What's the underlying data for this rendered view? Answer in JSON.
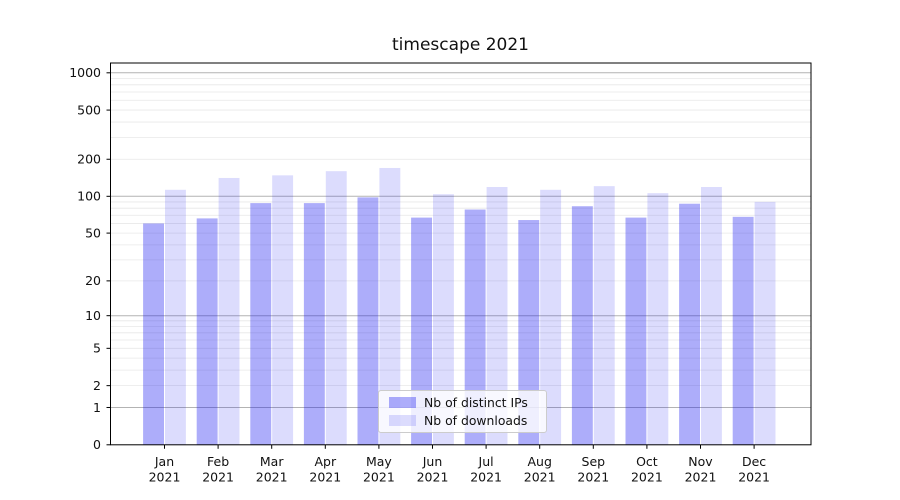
{
  "chart_data": {
    "type": "bar",
    "title": "timescape 2021",
    "categories": [
      "Jan 2021",
      "Feb 2021",
      "Mar 2021",
      "Apr 2021",
      "May 2021",
      "Jun 2021",
      "Jul 2021",
      "Aug 2021",
      "Sep 2021",
      "Oct 2021",
      "Nov 2021",
      "Dec 2021"
    ],
    "series": [
      {
        "name": "Nb of distinct IPs",
        "base_color": "#1414f0",
        "alpha": 0.35,
        "apparent_color": "#a9a9f6",
        "values": [
          60,
          66,
          88,
          88,
          98,
          67,
          78,
          64,
          83,
          67,
          87,
          68
        ]
      },
      {
        "name": "Nb of downloads",
        "base_color": "#1414f0",
        "alpha": 0.15,
        "apparent_color": "#d9d9fa",
        "values": [
          113,
          141,
          148,
          160,
          170,
          104,
          119,
          113,
          121,
          106,
          119,
          90
        ]
      }
    ],
    "xlabel": "",
    "ylabel": "",
    "yscale": "log1p",
    "ylim": [
      0,
      1200
    ],
    "y_ticks": [
      0,
      1,
      2,
      5,
      10,
      20,
      50,
      100,
      200,
      500,
      1000
    ],
    "grid": "both",
    "grid_major_color": "#b3b3b3",
    "grid_minor_color": "#e8e8e8",
    "legend_position": "lower center"
  }
}
